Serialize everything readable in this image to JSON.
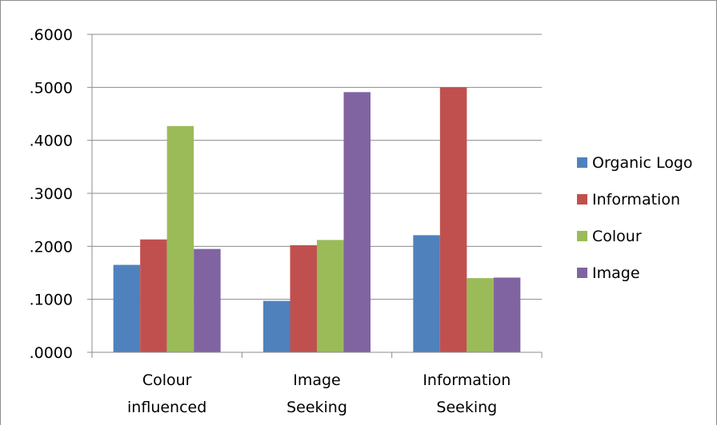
{
  "chart_data": {
    "type": "bar",
    "categories": [
      [
        "Colour",
        "influenced"
      ],
      [
        "Image",
        "Seeking"
      ],
      [
        "Information",
        "Seeking"
      ]
    ],
    "series": [
      {
        "name": "Organic Logo",
        "color": "#4F81BD",
        "values": [
          0.165,
          0.097,
          0.221
        ]
      },
      {
        "name": "Information",
        "color": "#C0504D",
        "values": [
          0.213,
          0.202,
          0.5
        ]
      },
      {
        "name": "Colour",
        "color": "#9BBB59",
        "values": [
          0.427,
          0.212,
          0.14
        ]
      },
      {
        "name": "Image",
        "color": "#8064A2",
        "values": [
          0.195,
          0.491,
          0.141
        ]
      }
    ],
    "yticks": [
      ".0000",
      ".1000",
      ".2000",
      ".3000",
      ".4000",
      ".5000",
      ".6000"
    ],
    "ylim": [
      0,
      0.6
    ],
    "grid": true,
    "legend": "right"
  }
}
